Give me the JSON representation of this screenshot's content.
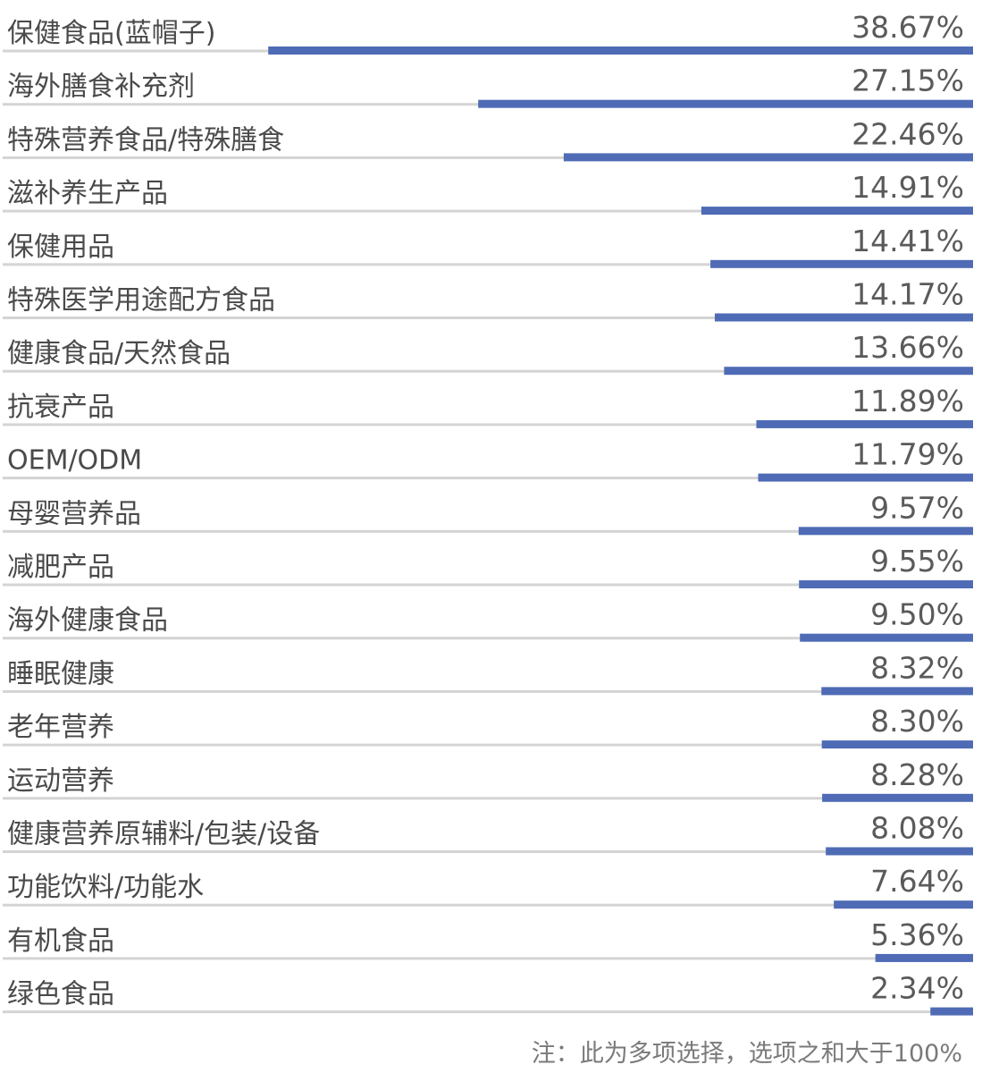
{
  "chart_data": {
    "type": "bar",
    "orientation": "horizontal",
    "categories": [
      "保健食品(蓝帽子)",
      "海外膳食补充剂",
      "特殊营养食品/特殊膳食",
      "滋补养生产品",
      "保健用品",
      "特殊医学用途配方食品",
      "健康食品/天然食品",
      "抗衰产品",
      "OEM/ODM",
      "母婴营养品",
      "减肥产品",
      "海外健康食品",
      "睡眠健康",
      "老年营养",
      "运动营养",
      "健康营养原辅料/包装/设备",
      "功能饮料/功能水",
      "有机食品",
      "绿色食品"
    ],
    "values": [
      38.67,
      27.15,
      22.46,
      14.91,
      14.41,
      14.17,
      13.66,
      11.89,
      11.79,
      9.57,
      9.55,
      9.5,
      8.32,
      8.3,
      8.28,
      8.08,
      7.64,
      5.36,
      2.34
    ],
    "value_labels": [
      "38.67%",
      "27.15%",
      "22.46%",
      "14.91%",
      "14.41%",
      "14.17%",
      "13.66%",
      "11.89%",
      "11.79%",
      "9.57%",
      "9.55%",
      "9.50%",
      "8.32%",
      "8.30%",
      "8.28%",
      "8.08%",
      "7.64%",
      "5.36%",
      "2.34%"
    ],
    "unit": "%",
    "grid": false,
    "legend": "none",
    "note": "注：此为多项选择，选项之和大于100%",
    "colors": {
      "bar": "#4f6bb5",
      "track": "#d4d4d4",
      "label": "#4a4a4a",
      "value": "#5a5a5a",
      "note": "#7a7a7a"
    }
  }
}
